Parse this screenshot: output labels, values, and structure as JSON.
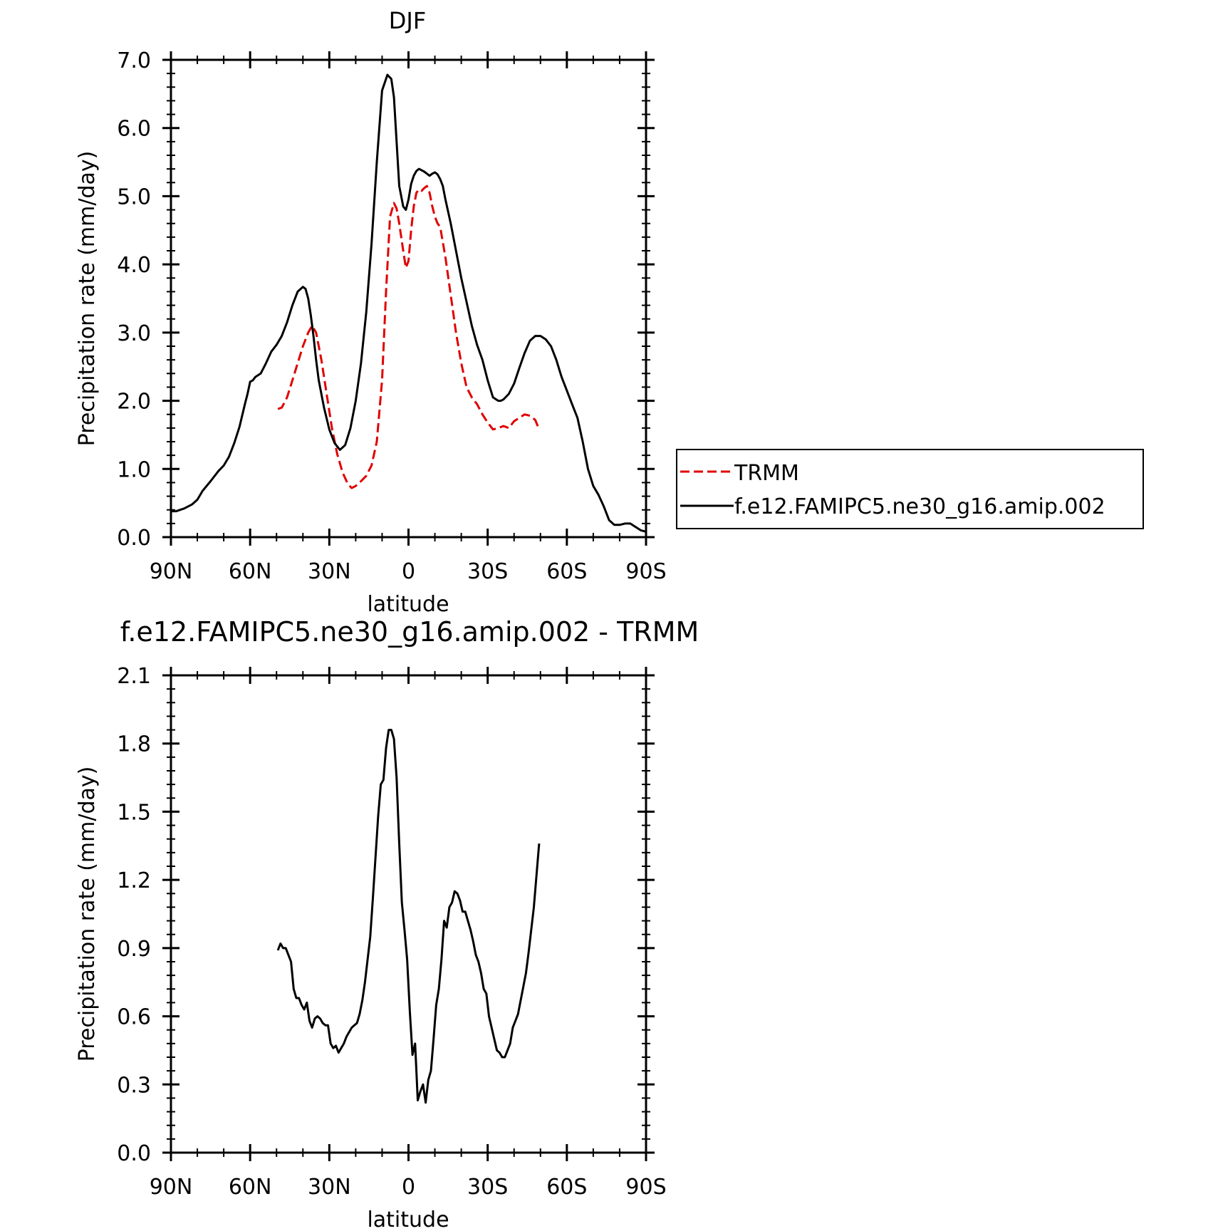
{
  "chart_data": [
    {
      "type": "line",
      "title": "DJF",
      "xlabel": "latitude",
      "ylabel": "Precipitation rate (mm/day)",
      "xlim": [
        -90,
        90
      ],
      "ylim": [
        0,
        7
      ],
      "x_ticks": [
        -90,
        -60,
        -30,
        0,
        30,
        60,
        90
      ],
      "x_tick_labels": [
        "90N",
        "60N",
        "30N",
        "0",
        "30S",
        "60S",
        "90S"
      ],
      "y_ticks": [
        0,
        1,
        2,
        3,
        4,
        5,
        6,
        7
      ],
      "y_tick_labels": [
        "0.0",
        "1.0",
        "2.0",
        "3.0",
        "4.0",
        "5.0",
        "6.0",
        "7.0"
      ],
      "grid": false,
      "legend_position": "right",
      "series": [
        {
          "name": "TRMM",
          "color": "#e00000",
          "dash": "dashed",
          "x": [
            -49.5,
            -48,
            -46,
            -44,
            -42,
            -40,
            -38,
            -36.5,
            -35,
            -33,
            -31,
            -29,
            -27,
            -25,
            -23,
            -21.5,
            -20,
            -18,
            -16,
            -14,
            -12,
            -10,
            -8.5,
            -7,
            -5.5,
            -4.5,
            -3.5,
            -2,
            -1,
            0,
            1,
            2,
            3,
            4,
            5,
            6,
            7,
            8,
            9,
            10,
            11,
            12,
            14,
            16,
            18,
            20,
            22,
            24,
            26,
            28,
            30,
            32,
            34,
            36,
            38,
            40,
            42,
            44,
            46,
            48,
            49.5
          ],
          "y": [
            1.88,
            1.9,
            2.05,
            2.3,
            2.55,
            2.8,
            3.0,
            3.1,
            3.0,
            2.6,
            2.1,
            1.6,
            1.22,
            0.95,
            0.78,
            0.72,
            0.75,
            0.82,
            0.9,
            1.05,
            1.4,
            2.3,
            3.6,
            4.7,
            4.9,
            4.82,
            4.6,
            4.2,
            3.95,
            4.05,
            4.5,
            4.85,
            5.05,
            5.1,
            5.08,
            5.12,
            5.15,
            5.05,
            4.85,
            4.7,
            4.6,
            4.55,
            4.1,
            3.55,
            3.0,
            2.55,
            2.2,
            2.05,
            1.95,
            1.8,
            1.68,
            1.58,
            1.6,
            1.63,
            1.6,
            1.7,
            1.75,
            1.8,
            1.78,
            1.72,
            1.58
          ]
        },
        {
          "name": "f.e12.FAMIPC5.ne30_g16.amip.002",
          "color": "#000000",
          "dash": "solid",
          "x": [
            -90,
            -88,
            -85,
            -82,
            -80,
            -78,
            -75,
            -72,
            -70,
            -68,
            -66,
            -64,
            -62,
            -61,
            -60,
            -59,
            -58,
            -56,
            -54,
            -52,
            -50,
            -48,
            -46,
            -44,
            -42,
            -40,
            -39,
            -38,
            -37,
            -36,
            -35,
            -34,
            -32,
            -30,
            -28,
            -26,
            -24,
            -22,
            -20,
            -18,
            -16,
            -14,
            -12,
            -10,
            -8,
            -6.5,
            -5.5,
            -4.5,
            -3.5,
            -2,
            -1,
            0,
            1,
            2,
            3,
            4,
            5,
            6,
            7,
            8,
            9,
            10,
            11,
            12,
            13,
            14,
            16,
            18,
            20,
            22,
            24,
            26,
            28,
            30,
            32,
            34,
            35,
            36,
            38,
            40,
            42,
            44,
            46,
            48,
            50,
            52,
            54,
            56,
            58,
            60,
            62,
            64,
            66,
            68,
            70,
            72,
            74,
            76,
            78,
            80,
            82,
            84,
            86,
            88,
            90
          ],
          "y": [
            0.38,
            0.38,
            0.42,
            0.48,
            0.55,
            0.68,
            0.82,
            0.97,
            1.05,
            1.18,
            1.38,
            1.62,
            1.95,
            2.1,
            2.28,
            2.3,
            2.35,
            2.4,
            2.55,
            2.72,
            2.82,
            2.95,
            3.15,
            3.4,
            3.6,
            3.67,
            3.64,
            3.5,
            3.25,
            2.95,
            2.6,
            2.3,
            1.9,
            1.58,
            1.38,
            1.28,
            1.35,
            1.6,
            2.0,
            2.55,
            3.3,
            4.3,
            5.5,
            6.55,
            6.78,
            6.72,
            6.45,
            5.8,
            5.15,
            4.85,
            4.8,
            4.95,
            5.18,
            5.3,
            5.37,
            5.4,
            5.38,
            5.36,
            5.33,
            5.3,
            5.33,
            5.35,
            5.32,
            5.25,
            5.15,
            4.95,
            4.6,
            4.2,
            3.8,
            3.45,
            3.1,
            2.82,
            2.6,
            2.3,
            2.05,
            2.0,
            2.0,
            2.02,
            2.1,
            2.25,
            2.48,
            2.7,
            2.88,
            2.95,
            2.95,
            2.9,
            2.8,
            2.6,
            2.35,
            2.15,
            1.95,
            1.75,
            1.4,
            1.0,
            0.75,
            0.62,
            0.45,
            0.25,
            0.18,
            0.18,
            0.2,
            0.2,
            0.15,
            0.1,
            0.08
          ]
        }
      ]
    },
    {
      "type": "line",
      "title": "f.e12.FAMIPC5.ne30_g16.amip.002 - TRMM",
      "xlabel": "latitude",
      "ylabel": "Precipitation rate (mm/day)",
      "xlim": [
        -90,
        90
      ],
      "ylim": [
        0,
        2.1
      ],
      "x_ticks": [
        -90,
        -60,
        -30,
        0,
        30,
        60,
        90
      ],
      "x_tick_labels": [
        "90N",
        "60N",
        "30N",
        "0",
        "30S",
        "60S",
        "90S"
      ],
      "y_ticks": [
        0,
        0.3,
        0.6,
        0.9,
        1.2,
        1.5,
        1.8,
        2.1
      ],
      "y_tick_labels": [
        "0.0",
        "0.3",
        "0.6",
        "0.9",
        "1.2",
        "1.5",
        "1.8",
        "2.1"
      ],
      "grid": false,
      "series": [
        {
          "color": "#000000",
          "dash": "solid",
          "x": [
            -49.5,
            -48.5,
            -47.5,
            -46.5,
            -45.5,
            -44.5,
            -43.5,
            -42.5,
            -41.5,
            -40.5,
            -39.5,
            -38.5,
            -37.5,
            -36.5,
            -35.5,
            -34.5,
            -33.5,
            -32.5,
            -31.5,
            -30.5,
            -29.5,
            -28.5,
            -27.5,
            -26.5,
            -25.5,
            -24.5,
            -23.5,
            -22.5,
            -21.5,
            -20.5,
            -19.5,
            -18.5,
            -17.5,
            -16.5,
            -15.5,
            -14.5,
            -13.5,
            -12.5,
            -11.5,
            -10.5,
            -9.5,
            -8.5,
            -7.5,
            -6.5,
            -5.5,
            -4.5,
            -3.5,
            -2.5,
            -1.5,
            -0.5,
            0.5,
            1.5,
            2.5,
            3.5,
            4.5,
            5.5,
            6.5,
            7.5,
            8.5,
            9.5,
            10.5,
            11.5,
            12.5,
            13.5,
            14.5,
            15.5,
            16.5,
            17.5,
            18.5,
            19.5,
            20.5,
            21.5,
            22.5,
            23.5,
            24.5,
            25.5,
            26.5,
            27.5,
            28.5,
            29.5,
            30.5,
            31.5,
            32.5,
            33.5,
            34.5,
            35.5,
            36.5,
            37.5,
            38.5,
            39.5,
            40.5,
            41.5,
            42.5,
            43.5,
            44.5,
            45.5,
            46.5,
            47.5,
            48.5,
            49.5
          ],
          "y": [
            0.89,
            0.92,
            0.9,
            0.9,
            0.87,
            0.84,
            0.72,
            0.68,
            0.68,
            0.65,
            0.63,
            0.66,
            0.58,
            0.55,
            0.59,
            0.6,
            0.59,
            0.57,
            0.56,
            0.56,
            0.48,
            0.46,
            0.47,
            0.44,
            0.46,
            0.48,
            0.51,
            0.53,
            0.55,
            0.56,
            0.57,
            0.61,
            0.67,
            0.75,
            0.85,
            0.95,
            1.12,
            1.3,
            1.48,
            1.62,
            1.64,
            1.78,
            1.86,
            1.86,
            1.82,
            1.65,
            1.36,
            1.1,
            0.98,
            0.85,
            0.62,
            0.43,
            0.48,
            0.23,
            0.27,
            0.3,
            0.22,
            0.32,
            0.36,
            0.5,
            0.65,
            0.72,
            0.85,
            1.02,
            0.99,
            1.08,
            1.1,
            1.15,
            1.14,
            1.11,
            1.06,
            1.06,
            1.02,
            0.98,
            0.93,
            0.87,
            0.84,
            0.79,
            0.72,
            0.7,
            0.6,
            0.55,
            0.5,
            0.45,
            0.44,
            0.42,
            0.42,
            0.45,
            0.48,
            0.55,
            0.58,
            0.61,
            0.67,
            0.73,
            0.79,
            0.88,
            0.98,
            1.08,
            1.22,
            1.36
          ]
        }
      ]
    }
  ],
  "legend": {
    "items": [
      {
        "label": "TRMM"
      },
      {
        "label": "f.e12.FAMIPC5.ne30_g16.amip.002"
      }
    ]
  }
}
